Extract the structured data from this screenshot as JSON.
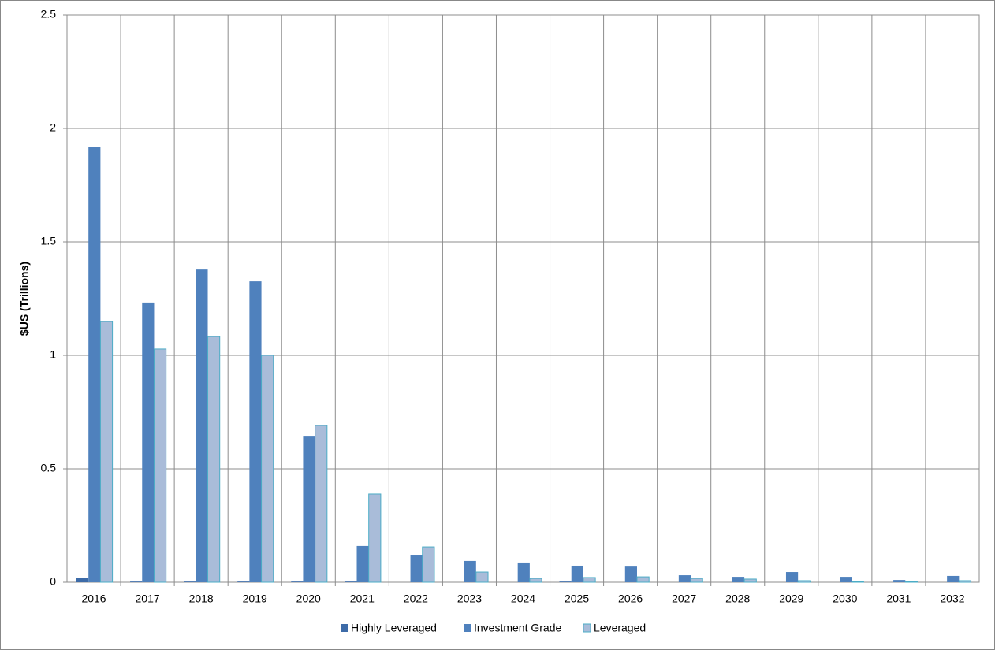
{
  "chart_data": {
    "type": "bar",
    "y_label": "$US (Trillions)",
    "categories": [
      "2016",
      "2017",
      "2018",
      "2019",
      "2020",
      "2021",
      "2022",
      "2023",
      "2024",
      "2025",
      "2026",
      "2027",
      "2028",
      "2029",
      "2030",
      "2031",
      "2032"
    ],
    "series": [
      {
        "name": "Highly Leveraged",
        "color": "#3d6ba8",
        "values": [
          0.018,
          0.003,
          0.003,
          0.003,
          0.003,
          0.003,
          0,
          0,
          0,
          0.003,
          0,
          0,
          0,
          0,
          0,
          0,
          0
        ]
      },
      {
        "name": "Investment Grade",
        "color": "#4f81bd",
        "values": [
          1.917,
          1.233,
          1.378,
          1.326,
          0.642,
          0.16,
          0.118,
          0.094,
          0.087,
          0.073,
          0.069,
          0.031,
          0.024,
          0.045,
          0.024,
          0.01,
          0.028
        ]
      },
      {
        "name": "Leveraged",
        "color": "#a9bcd9",
        "edgecolor": "#4bacc6",
        "values": [
          1.149,
          1.028,
          1.083,
          1.0,
          0.691,
          0.389,
          0.156,
          0.045,
          0.017,
          0.021,
          0.024,
          0.017,
          0.014,
          0.007,
          0.003,
          0.003,
          0.007
        ]
      }
    ],
    "ylim": [
      0,
      2.5
    ],
    "yticks": [
      0,
      0.5,
      1,
      1.5,
      2,
      2.5
    ],
    "grid": true,
    "legend": "bottom"
  }
}
